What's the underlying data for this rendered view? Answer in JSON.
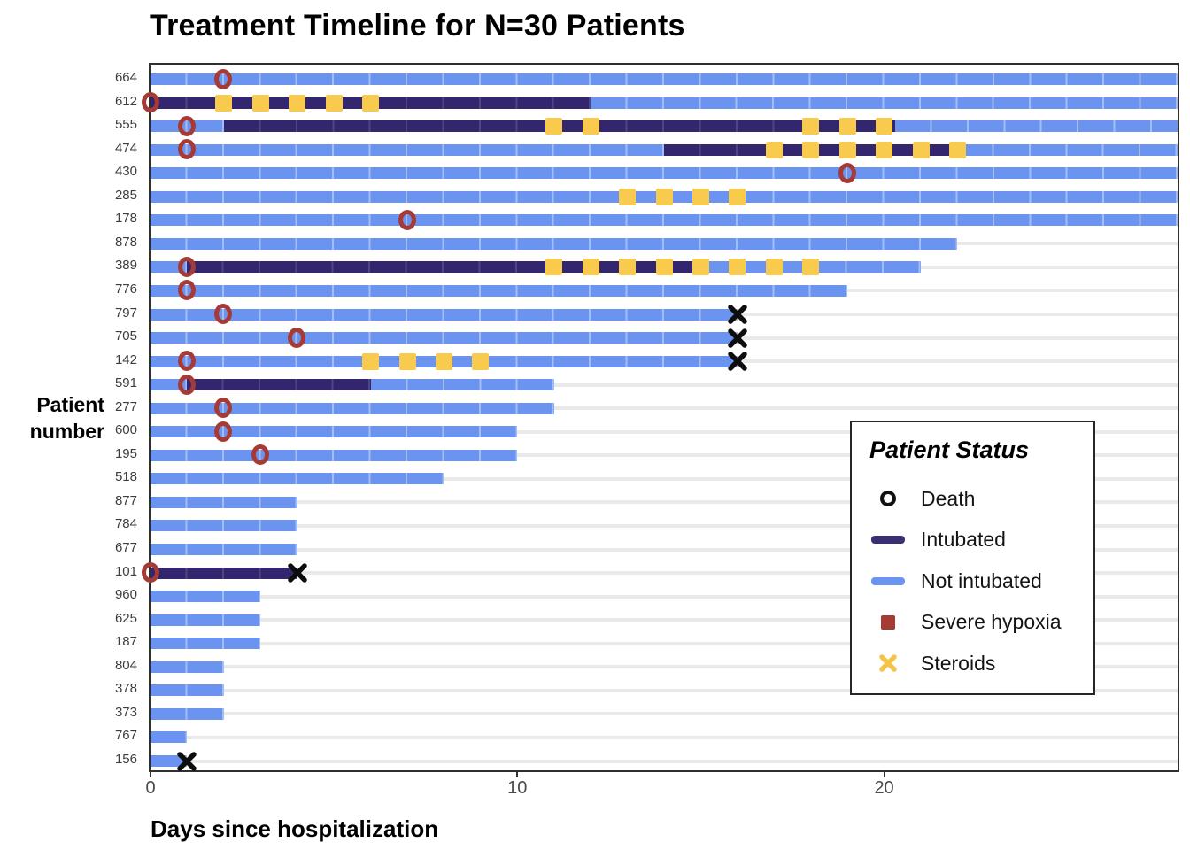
{
  "title": "Treatment Timeline for N=30 Patients",
  "x_axis": {
    "label": "Days since hospitalization",
    "ticks": [
      "0",
      "10",
      "20"
    ],
    "tick_values": [
      0,
      10,
      20
    ],
    "min": 0,
    "max": 28
  },
  "y_axis": {
    "label": "Patient number"
  },
  "legend": {
    "title": "Patient Status",
    "items": [
      {
        "label": "Death",
        "glyph": "open-circle",
        "color": "#111111"
      },
      {
        "label": "Intubated",
        "glyph": "bar",
        "color": "#3b2f73"
      },
      {
        "label": "Not intubated",
        "glyph": "bar",
        "color": "#6b94f0"
      },
      {
        "label": "Severe hypoxia",
        "glyph": "square",
        "color": "#a63b35"
      },
      {
        "label": "Steroids",
        "glyph": "x-cross",
        "color": "#f8ca4e"
      }
    ]
  },
  "colors": {
    "not_intubated_bar": "#6b94f0",
    "intubated_bar": "#34266e",
    "severe_hypoxia_marker": "#a63b35",
    "steroid_marker": "#f8ca4e",
    "death_marker": "#0d0d0d",
    "gridline": "#e9e9e9",
    "panel_border": "#2f2f2f"
  },
  "chart_data": {
    "type": "timeline",
    "subtype": "swimmer-plot",
    "n_patients": 30,
    "x_unit": "days since hospitalization",
    "xlim": [
      0,
      28
    ],
    "grid": "horizontal-only",
    "legend_position": "inside-right",
    "marker_meaning_note": "red open circle = severe hypoxia onset; gold square = steroid day; black X = death at bar end; bars clipped at day 28 panel edge",
    "patients": [
      {
        "id": "664",
        "segments": [
          [
            "not_intubated",
            0,
            28
          ]
        ],
        "severe_hypoxia_day": 2,
        "steroid_days": [],
        "death_day": null,
        "clipped": true
      },
      {
        "id": "612",
        "segments": [
          [
            "intubated",
            0,
            12
          ],
          [
            "not_intubated",
            12,
            28
          ]
        ],
        "severe_hypoxia_day": 0,
        "steroid_days": [
          2,
          3,
          4,
          5,
          6
        ],
        "death_day": null,
        "clipped": true
      },
      {
        "id": "555",
        "segments": [
          [
            "not_intubated",
            0,
            2
          ],
          [
            "intubated",
            2,
            20.3
          ],
          [
            "not_intubated",
            20.3,
            28
          ]
        ],
        "severe_hypoxia_day": 1,
        "steroid_days": [
          11,
          12,
          18,
          19,
          20
        ],
        "death_day": null,
        "clipped": true
      },
      {
        "id": "474",
        "segments": [
          [
            "not_intubated",
            0,
            14
          ],
          [
            "intubated",
            14,
            22
          ],
          [
            "not_intubated",
            22,
            28
          ]
        ],
        "severe_hypoxia_day": 1,
        "steroid_days": [
          17,
          18,
          19,
          20,
          21,
          22
        ],
        "death_day": null,
        "clipped": true
      },
      {
        "id": "430",
        "segments": [
          [
            "not_intubated",
            0,
            28
          ]
        ],
        "severe_hypoxia_day": 19,
        "steroid_days": [],
        "death_day": null,
        "clipped": true
      },
      {
        "id": "285",
        "segments": [
          [
            "not_intubated",
            0,
            28
          ]
        ],
        "severe_hypoxia_day": null,
        "steroid_days": [
          13,
          14,
          15,
          16
        ],
        "death_day": null,
        "clipped": true
      },
      {
        "id": "178",
        "segments": [
          [
            "not_intubated",
            0,
            28
          ]
        ],
        "severe_hypoxia_day": 7,
        "steroid_days": [],
        "death_day": null,
        "clipped": true
      },
      {
        "id": "878",
        "segments": [
          [
            "not_intubated",
            0,
            22
          ]
        ],
        "severe_hypoxia_day": null,
        "steroid_days": [],
        "death_day": null,
        "clipped": false
      },
      {
        "id": "389",
        "segments": [
          [
            "not_intubated",
            0,
            1
          ],
          [
            "intubated",
            1,
            15
          ],
          [
            "not_intubated",
            15,
            21
          ]
        ],
        "severe_hypoxia_day": 1,
        "steroid_days": [
          11,
          12,
          13,
          14,
          15,
          16,
          17,
          18
        ],
        "death_day": null,
        "clipped": false
      },
      {
        "id": "776",
        "segments": [
          [
            "not_intubated",
            0,
            19
          ]
        ],
        "severe_hypoxia_day": 1,
        "steroid_days": [],
        "death_day": null,
        "clipped": false
      },
      {
        "id": "797",
        "segments": [
          [
            "not_intubated",
            0,
            16
          ]
        ],
        "severe_hypoxia_day": 2,
        "steroid_days": [],
        "death_day": 16,
        "clipped": false
      },
      {
        "id": "705",
        "segments": [
          [
            "not_intubated",
            0,
            16
          ]
        ],
        "severe_hypoxia_day": 4,
        "steroid_days": [],
        "death_day": 16,
        "clipped": false
      },
      {
        "id": "142",
        "segments": [
          [
            "not_intubated",
            0,
            16
          ]
        ],
        "severe_hypoxia_day": 1,
        "steroid_days": [
          6,
          7,
          8,
          9
        ],
        "death_day": 16,
        "clipped": false
      },
      {
        "id": "591",
        "segments": [
          [
            "not_intubated",
            0,
            1
          ],
          [
            "intubated",
            1,
            6
          ],
          [
            "not_intubated",
            6,
            11
          ]
        ],
        "severe_hypoxia_day": 1,
        "steroid_days": [],
        "death_day": null,
        "clipped": false
      },
      {
        "id": "277",
        "segments": [
          [
            "not_intubated",
            0,
            11
          ]
        ],
        "severe_hypoxia_day": 2,
        "steroid_days": [],
        "death_day": null,
        "clipped": false
      },
      {
        "id": "600",
        "segments": [
          [
            "not_intubated",
            0,
            10
          ]
        ],
        "severe_hypoxia_day": 2,
        "steroid_days": [],
        "death_day": null,
        "clipped": false
      },
      {
        "id": "195",
        "segments": [
          [
            "not_intubated",
            0,
            10
          ]
        ],
        "severe_hypoxia_day": 3,
        "steroid_days": [],
        "death_day": null,
        "clipped": false
      },
      {
        "id": "518",
        "segments": [
          [
            "not_intubated",
            0,
            8
          ]
        ],
        "severe_hypoxia_day": null,
        "steroid_days": [],
        "death_day": null,
        "clipped": false
      },
      {
        "id": "877",
        "segments": [
          [
            "not_intubated",
            0,
            4
          ]
        ],
        "severe_hypoxia_day": null,
        "steroid_days": [],
        "death_day": null,
        "clipped": false
      },
      {
        "id": "784",
        "segments": [
          [
            "not_intubated",
            0,
            4
          ]
        ],
        "severe_hypoxia_day": null,
        "steroid_days": [],
        "death_day": null,
        "clipped": false
      },
      {
        "id": "677",
        "segments": [
          [
            "not_intubated",
            0,
            4
          ]
        ],
        "severe_hypoxia_day": null,
        "steroid_days": [],
        "death_day": null,
        "clipped": false
      },
      {
        "id": "101",
        "segments": [
          [
            "intubated",
            0,
            4
          ]
        ],
        "severe_hypoxia_day": 0,
        "steroid_days": [],
        "death_day": 4,
        "clipped": false
      },
      {
        "id": "960",
        "segments": [
          [
            "not_intubated",
            0,
            3
          ]
        ],
        "severe_hypoxia_day": null,
        "steroid_days": [],
        "death_day": null,
        "clipped": false
      },
      {
        "id": "625",
        "segments": [
          [
            "not_intubated",
            0,
            3
          ]
        ],
        "severe_hypoxia_day": null,
        "steroid_days": [],
        "death_day": null,
        "clipped": false
      },
      {
        "id": "187",
        "segments": [
          [
            "not_intubated",
            0,
            3
          ]
        ],
        "severe_hypoxia_day": null,
        "steroid_days": [],
        "death_day": null,
        "clipped": false
      },
      {
        "id": "804",
        "segments": [
          [
            "not_intubated",
            0,
            2
          ]
        ],
        "severe_hypoxia_day": null,
        "steroid_days": [],
        "death_day": null,
        "clipped": false
      },
      {
        "id": "378",
        "segments": [
          [
            "not_intubated",
            0,
            2
          ]
        ],
        "severe_hypoxia_day": null,
        "steroid_days": [],
        "death_day": null,
        "clipped": false
      },
      {
        "id": "373",
        "segments": [
          [
            "not_intubated",
            0,
            2
          ]
        ],
        "severe_hypoxia_day": null,
        "steroid_days": [],
        "death_day": null,
        "clipped": false
      },
      {
        "id": "767",
        "segments": [
          [
            "not_intubated",
            0,
            1
          ]
        ],
        "severe_hypoxia_day": null,
        "steroid_days": [],
        "death_day": null,
        "clipped": false
      },
      {
        "id": "156",
        "segments": [
          [
            "not_intubated",
            0,
            1
          ]
        ],
        "severe_hypoxia_day": null,
        "steroid_days": [],
        "death_day": 1,
        "clipped": false
      }
    ]
  }
}
